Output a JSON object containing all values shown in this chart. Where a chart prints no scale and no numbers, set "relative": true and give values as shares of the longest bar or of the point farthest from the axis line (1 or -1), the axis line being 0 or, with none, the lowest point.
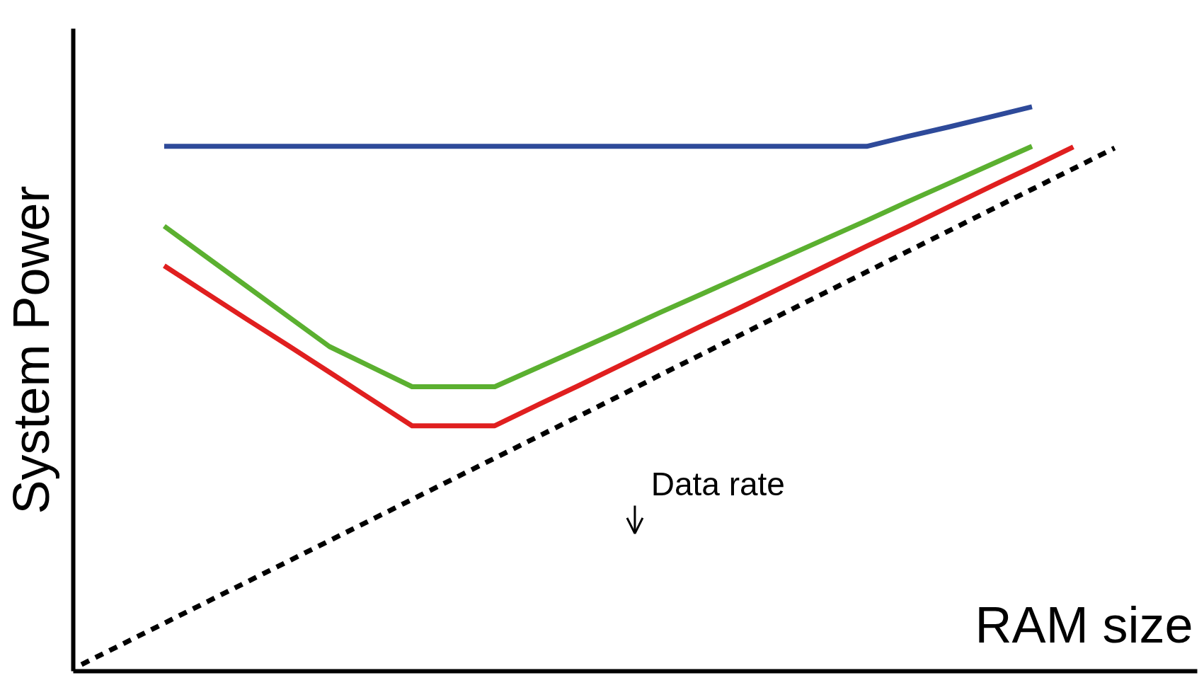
{
  "chart_data": {
    "type": "line",
    "relative": true,
    "xlabel": "RAM size",
    "ylabel": "System Power",
    "annotations": [
      "Data rate"
    ],
    "categories": [
      null,
      null,
      null,
      null,
      null,
      null,
      null,
      null,
      null,
      null,
      null,
      null,
      null,
      null,
      null,
      null,
      null,
      null,
      null,
      null,
      null,
      null,
      null,
      null,
      null,
      null
    ],
    "series": [
      {
        "color": "#2e4a9a",
        "values": [
          null,
          null,
          0.929,
          0.929,
          0.929,
          0.929,
          0.929,
          0.929,
          0.929,
          0.929,
          0.929,
          0.929,
          0.929,
          0.929,
          0.929,
          0.929,
          0.929,
          0.929,
          0.929,
          0.929,
          0.947,
          0.964,
          0.982,
          1.0,
          null,
          null
        ]
      },
      {
        "color": "#5bb030",
        "values": [
          null,
          null,
          0.786,
          0.732,
          0.678,
          0.624,
          0.57,
          0.534,
          0.498,
          0.498,
          0.498,
          0.531,
          0.564,
          0.597,
          0.631,
          0.664,
          0.697,
          0.73,
          0.763,
          0.796,
          0.83,
          0.863,
          0.896,
          0.929,
          null,
          null
        ]
      },
      {
        "color": "#e01f1f",
        "values": [
          null,
          null,
          0.715,
          0.667,
          0.619,
          0.572,
          0.524,
          0.476,
          0.428,
          0.428,
          0.428,
          0.464,
          0.499,
          0.535,
          0.571,
          0.607,
          0.642,
          0.678,
          0.714,
          0.75,
          0.785,
          0.821,
          0.857,
          0.892,
          0.928,
          null
        ]
      },
      {
        "color": "#000000",
        "line_style": "dashed",
        "values": [
          0,
          0.037,
          0.074,
          0.111,
          0.148,
          0.185,
          0.222,
          0.259,
          0.296,
          0.333,
          0.37,
          0.407,
          0.444,
          0.481,
          0.519,
          0.556,
          0.593,
          0.63,
          0.667,
          0.704,
          0.741,
          0.778,
          0.815,
          0.852,
          0.889,
          0.926
        ]
      }
    ]
  }
}
